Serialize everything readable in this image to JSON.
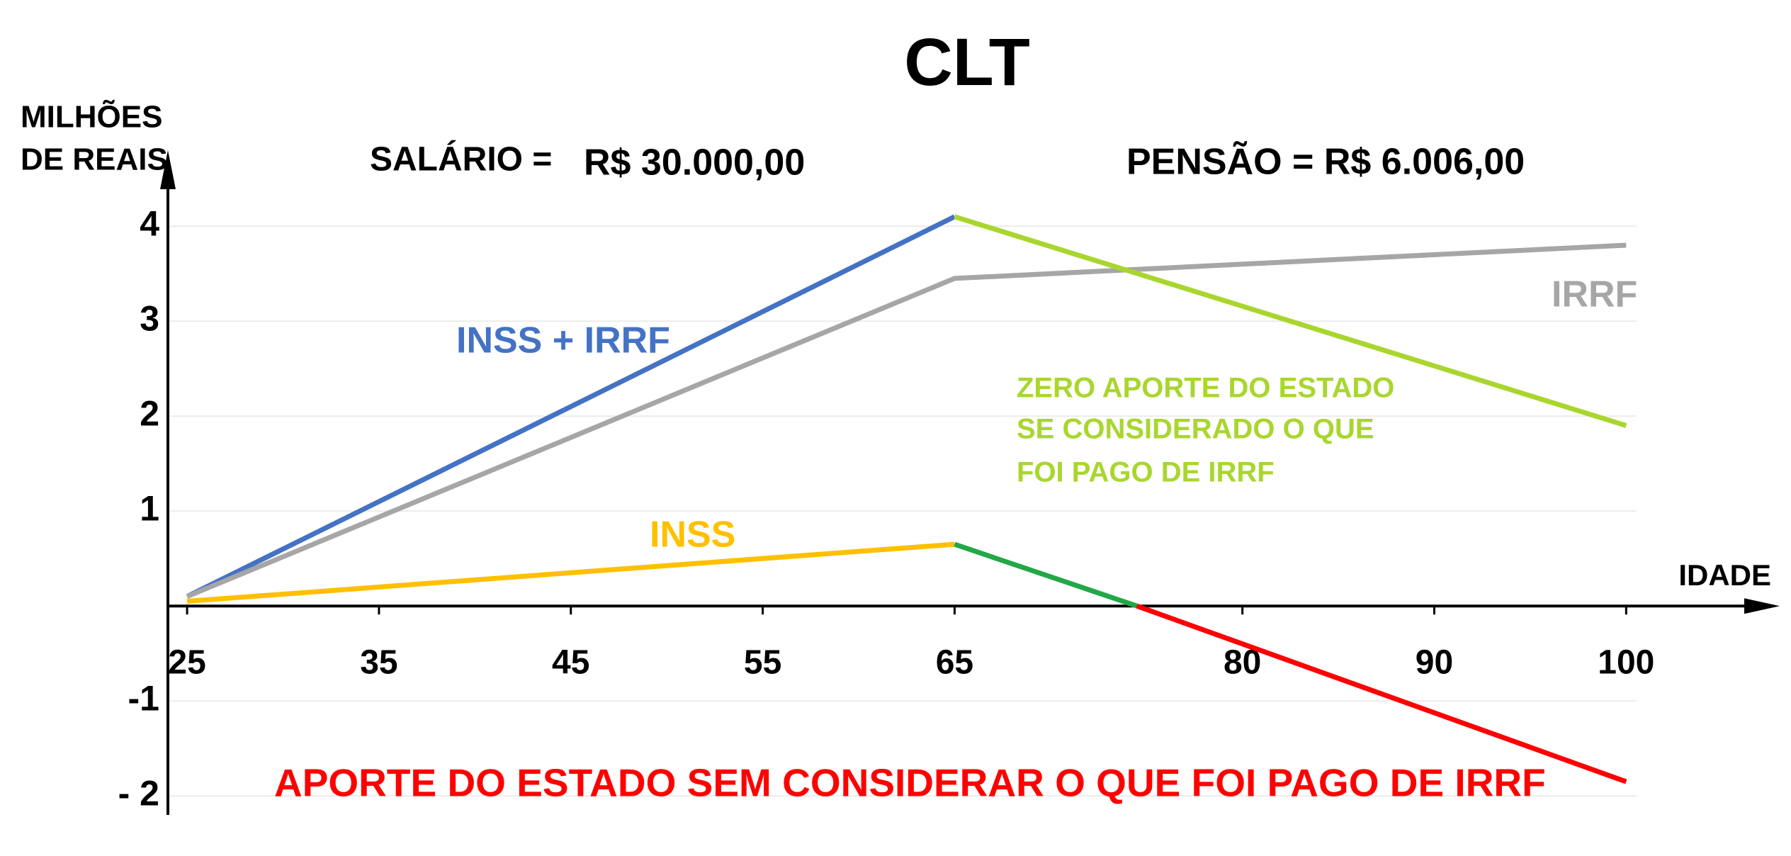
{
  "chart_data": {
    "type": "line",
    "title": "CLT",
    "y_label": [
      "MILHÕES",
      "DE REAIS"
    ],
    "x_label": "IDADE",
    "xlim": [
      24,
      108
    ],
    "ylim": [
      -2.2,
      4.8
    ],
    "xticks": [
      25,
      35,
      45,
      55,
      65,
      80,
      90,
      100
    ],
    "yticks": [
      4,
      3,
      2,
      1,
      -1,
      {
        "value": -2,
        "label": "- 2"
      }
    ],
    "grid": true,
    "series": [
      {
        "name": "INSS + IRRF",
        "color": "#4472c4",
        "x": [
          25,
          65
        ],
        "values": [
          0.1,
          4.1
        ]
      },
      {
        "name": "IRRF",
        "color": "#a6a6a6",
        "x": [
          25,
          65,
          100
        ],
        "values": [
          0.1,
          3.45,
          3.8
        ]
      },
      {
        "color": "#a9d62e",
        "x": [
          65,
          100
        ],
        "values": [
          4.1,
          1.9
        ]
      },
      {
        "name": "INSS",
        "color": "#ffc000",
        "x": [
          25,
          65
        ],
        "values": [
          0.05,
          0.65
        ]
      },
      {
        "color": "#22a846",
        "x": [
          65,
          74.5
        ],
        "values": [
          0.65,
          0
        ]
      },
      {
        "color": "#ff0000",
        "x": [
          74.5,
          100
        ],
        "values": [
          0,
          -1.85
        ]
      }
    ],
    "annotations": [
      {
        "text": "SALÁRIO =",
        "color": "#000000"
      },
      {
        "text": "R$ 30.000,00",
        "color": "#000000"
      },
      {
        "text": "PENSÃO = R$ 6.006,00",
        "color": "#000000"
      },
      {
        "text": "ZERO APORTE DO ESTADO",
        "color": "#a9d62e"
      },
      {
        "text": "SE CONSIDERADO O QUE",
        "color": "#a9d62e"
      },
      {
        "text": "FOI PAGO DE IRRF",
        "color": "#a9d62e"
      },
      {
        "text": "APORTE DO ESTADO SEM CONSIDERAR O QUE FOI PAGO DE IRRF",
        "color": "#ff0000"
      }
    ]
  }
}
